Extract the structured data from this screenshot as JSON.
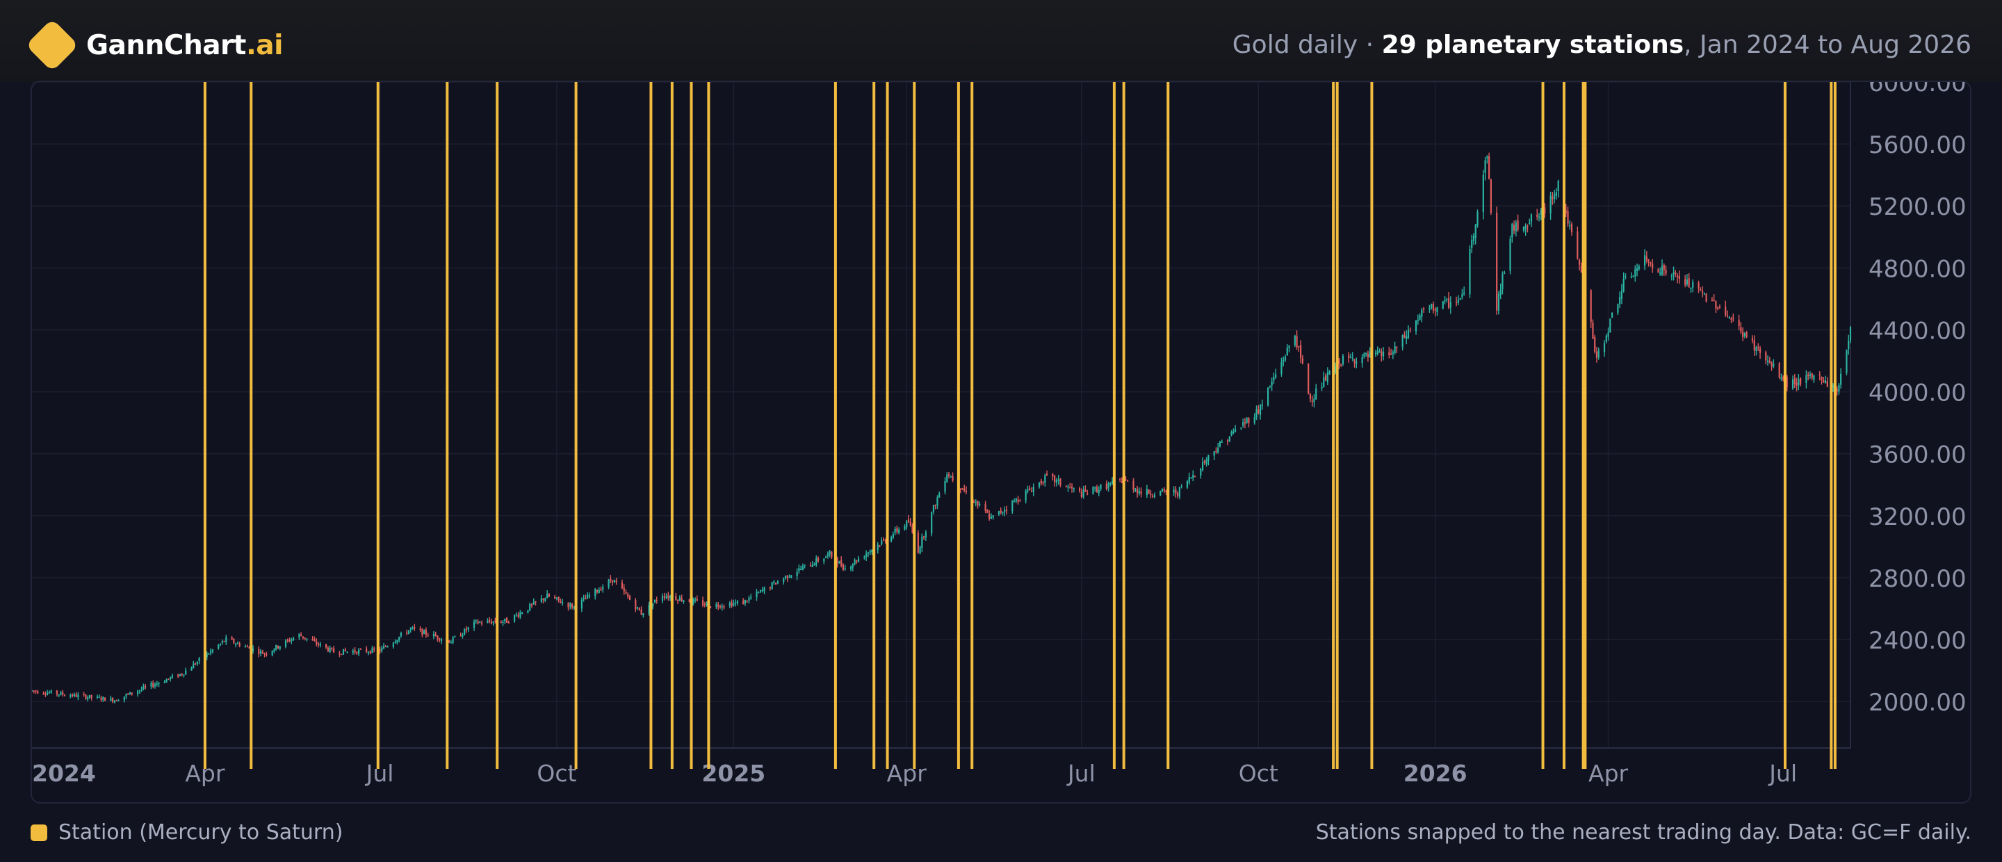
{
  "brand": {
    "name": "GannChart",
    "accent": ".ai",
    "icon": "diamond-logo-icon"
  },
  "header": {
    "prefix": "Gold daily",
    "separator": " · ",
    "highlight": "29 planetary stations",
    "suffix": ", Jan 2024 to Aug 2026"
  },
  "legend": {
    "label": "Station (Mercury to Saturn)",
    "color": "#f2bd3f"
  },
  "footnote": "Stations snapped to the nearest trading day. Data: GC=F daily.",
  "colors": {
    "background": "#121320",
    "station": "#f2bd3f",
    "up": "#2bb5a3",
    "down": "#e05c5c",
    "grid": "#1d1f30",
    "axis_text": "#8e93a7"
  },
  "chart_data": {
    "type": "candlestick",
    "x_range": [
      "2024-01-02",
      "2026-08-05"
    ],
    "ylim": [
      1700,
      6000
    ],
    "y_ticks": [
      "2000.00",
      "2400.00",
      "2800.00",
      "3200.00",
      "3600.00",
      "4000.00",
      "4400.00",
      "4800.00",
      "5200.00",
      "5600.00",
      "6000.00"
    ],
    "x_ticks": [
      {
        "date": "2024-01-01",
        "label": "2024",
        "bold": true
      },
      {
        "date": "2024-04-01",
        "label": "Apr",
        "bold": false
      },
      {
        "date": "2024-07-01",
        "label": "Jul",
        "bold": false
      },
      {
        "date": "2024-10-01",
        "label": "Oct",
        "bold": false
      },
      {
        "date": "2025-01-01",
        "label": "2025",
        "bold": true
      },
      {
        "date": "2025-04-01",
        "label": "Apr",
        "bold": false
      },
      {
        "date": "2025-07-01",
        "label": "Jul",
        "bold": false
      },
      {
        "date": "2025-10-01",
        "label": "Oct",
        "bold": false
      },
      {
        "date": "2026-01-01",
        "label": "2026",
        "bold": true
      },
      {
        "date": "2026-04-01",
        "label": "Apr",
        "bold": false
      },
      {
        "date": "2026-07-01",
        "label": "Jul",
        "bold": false
      }
    ],
    "price_path": [
      [
        "2024-01-02",
        2070
      ],
      [
        "2024-02-14",
        2010
      ],
      [
        "2024-03-01",
        2090
      ],
      [
        "2024-03-20",
        2180
      ],
      [
        "2024-04-12",
        2400
      ],
      [
        "2024-05-02",
        2310
      ],
      [
        "2024-05-20",
        2430
      ],
      [
        "2024-06-07",
        2320
      ],
      [
        "2024-07-01",
        2330
      ],
      [
        "2024-07-17",
        2470
      ],
      [
        "2024-08-07",
        2390
      ],
      [
        "2024-08-20",
        2510
      ],
      [
        "2024-09-05",
        2520
      ],
      [
        "2024-09-26",
        2680
      ],
      [
        "2024-10-10",
        2610
      ],
      [
        "2024-10-30",
        2790
      ],
      [
        "2024-11-14",
        2570
      ],
      [
        "2024-11-25",
        2690
      ],
      [
        "2024-12-20",
        2620
      ],
      [
        "2025-01-06",
        2640
      ],
      [
        "2025-01-30",
        2820
      ],
      [
        "2025-02-20",
        2950
      ],
      [
        "2025-02-28",
        2860
      ],
      [
        "2025-03-20",
        3040
      ],
      [
        "2025-04-02",
        3160
      ],
      [
        "2025-04-07",
        2980
      ],
      [
        "2025-04-22",
        3480
      ],
      [
        "2025-05-15",
        3180
      ],
      [
        "2025-06-13",
        3450
      ],
      [
        "2025-07-01",
        3340
      ],
      [
        "2025-07-23",
        3430
      ],
      [
        "2025-08-01",
        3350
      ],
      [
        "2025-08-20",
        3350
      ],
      [
        "2025-09-10",
        3650
      ],
      [
        "2025-10-01",
        3880
      ],
      [
        "2025-10-20",
        4370
      ],
      [
        "2025-10-28",
        3950
      ],
      [
        "2025-11-12",
        4200
      ],
      [
        "2025-12-10",
        4250
      ],
      [
        "2025-12-26",
        4520
      ],
      [
        "2026-01-15",
        4600
      ],
      [
        "2026-01-28",
        5550
      ],
      [
        "2026-02-02",
        4550
      ],
      [
        "2026-02-10",
        5050
      ],
      [
        "2026-02-26",
        5150
      ],
      [
        "2026-03-06",
        5350
      ],
      [
        "2026-03-20",
        4650
      ],
      [
        "2026-03-26",
        4200
      ],
      [
        "2026-04-09",
        4700
      ],
      [
        "2026-04-20",
        4850
      ],
      [
        "2026-05-12",
        4700
      ],
      [
        "2026-05-29",
        4550
      ],
      [
        "2026-06-19",
        4250
      ],
      [
        "2026-07-03",
        4050
      ],
      [
        "2026-07-20",
        4100
      ],
      [
        "2026-07-29",
        4000
      ],
      [
        "2026-08-05",
        4400
      ]
    ],
    "stations": [
      "2024-04-01",
      "2024-04-25",
      "2024-06-30",
      "2024-08-05",
      "2024-08-31",
      "2024-10-11",
      "2024-11-19",
      "2024-11-30",
      "2024-12-10",
      "2024-12-19",
      "2025-02-23",
      "2025-03-15",
      "2025-03-22",
      "2025-04-05",
      "2025-04-28",
      "2025-05-05",
      "2025-07-18",
      "2025-07-23",
      "2025-08-15",
      "2025-11-09",
      "2025-11-29",
      "2026-02-26",
      "2026-03-09",
      "2026-03-19",
      "2026-07-02",
      "2026-07-26",
      "2025-11-11",
      "2026-07-28",
      "2026-03-20"
    ]
  }
}
